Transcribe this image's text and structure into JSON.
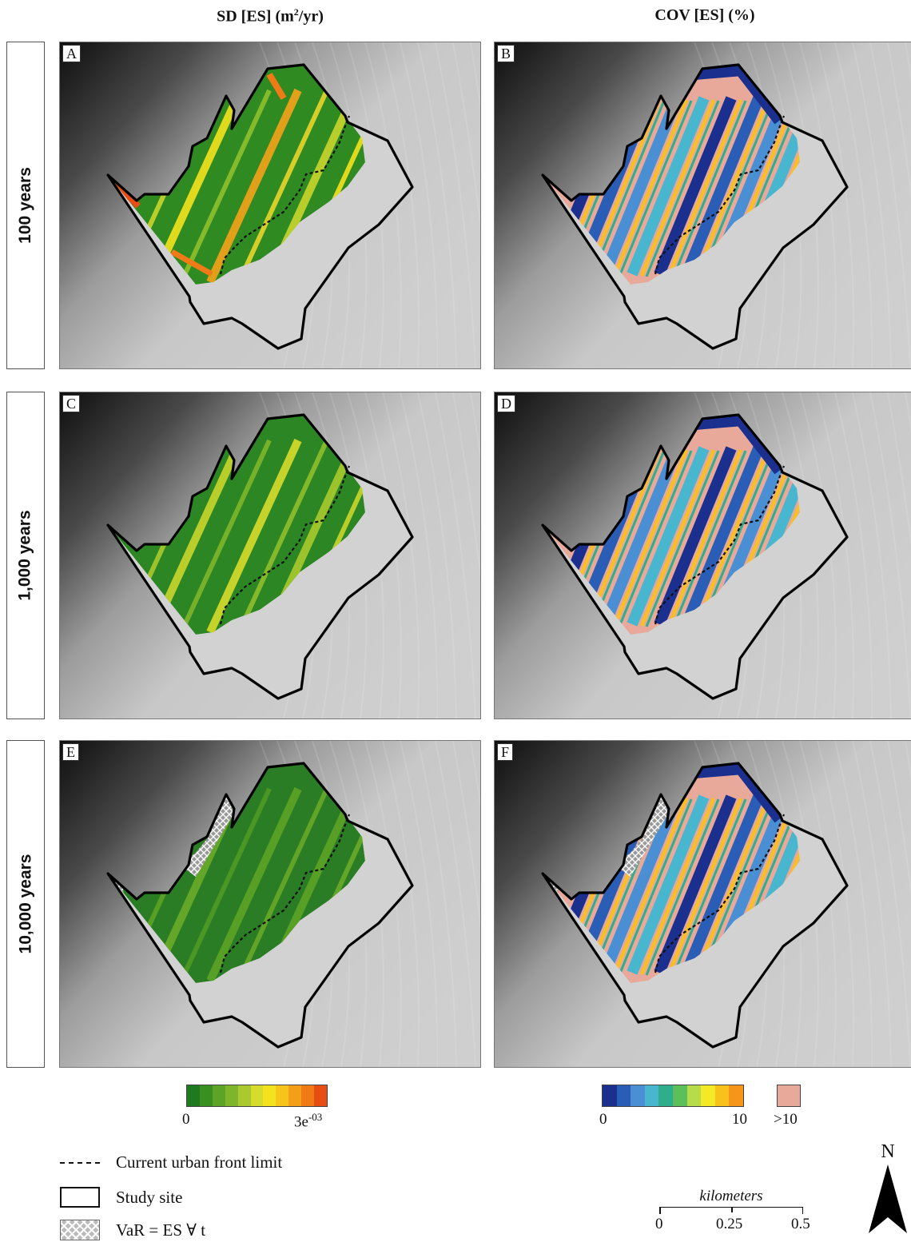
{
  "columns": {
    "left_title": "SD [ES] (m²/yr)",
    "right_title": "COV [ES] (%)"
  },
  "rows": [
    {
      "label": "100 years"
    },
    {
      "label": "1,000 years"
    },
    {
      "label": "10,000 years"
    }
  ],
  "panels": [
    {
      "letter": "A",
      "variable": "SD",
      "row": 0
    },
    {
      "letter": "B",
      "variable": "COV",
      "row": 0
    },
    {
      "letter": "C",
      "variable": "SD",
      "row": 1
    },
    {
      "letter": "D",
      "variable": "COV",
      "row": 1
    },
    {
      "letter": "E",
      "variable": "SD",
      "row": 2,
      "hatched": true
    },
    {
      "letter": "F",
      "variable": "COV",
      "row": 2,
      "hatched": true
    }
  ],
  "sd_colorbar": {
    "min_label": "0",
    "max_label": "3e-03",
    "colors": [
      "#1e7a1e",
      "#3a8f22",
      "#5ca326",
      "#7fb52a",
      "#a9c92e",
      "#d6dc2c",
      "#f3e21e",
      "#f7c51a",
      "#f59e18",
      "#f07a16",
      "#e84d14"
    ]
  },
  "cov_colorbar": {
    "min_label": "0",
    "max_label": "10",
    "over_label": ">10",
    "over_color": "#e8a89a",
    "colors": [
      "#1b2f8f",
      "#2a5db5",
      "#4a8fd4",
      "#48b6cf",
      "#2fae8c",
      "#5bbf5a",
      "#b7dc4a",
      "#f3ea25",
      "#f9c11c",
      "#f7941a"
    ]
  },
  "legend": [
    {
      "symbol": "dashed-line",
      "label": "Current urban front limit"
    },
    {
      "symbol": "outline-box",
      "label": "Study site"
    },
    {
      "symbol": "hatch-box",
      "label": "VaR = ES ∀ t"
    }
  ],
  "scale_bar": {
    "title": "kilometers",
    "ticks": [
      "0",
      "0.25",
      "0.5"
    ]
  },
  "north_label": "N"
}
